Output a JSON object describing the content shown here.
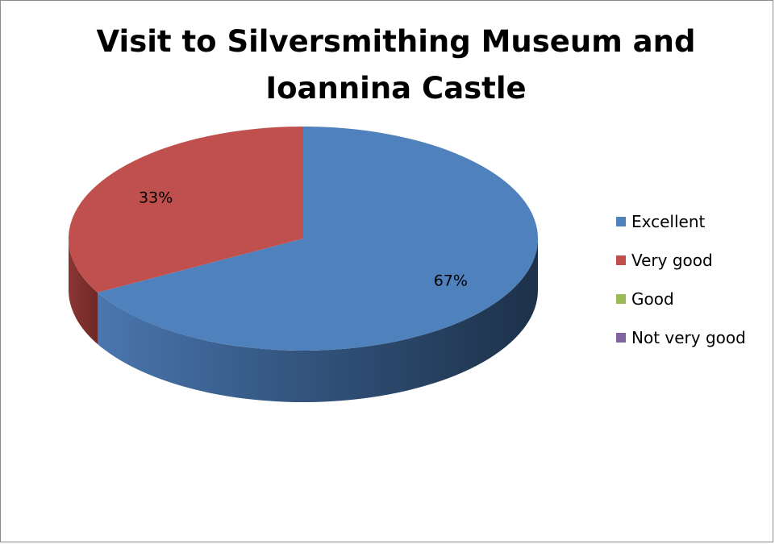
{
  "chart_data": {
    "type": "pie",
    "title": "Visit to Silversmithing Museum and Ioannina Castle",
    "title_lines": [
      "Visit to Silversmithing Museum and",
      "Ioannina Castle"
    ],
    "categories": [
      "Excellent",
      "Very good",
      "Good",
      "Not very good"
    ],
    "values": [
      67,
      33,
      0,
      0
    ],
    "data_labels": [
      "67%",
      "33%",
      "",
      ""
    ],
    "colors": [
      "#4F81BD",
      "#C0504D",
      "#9BBB59",
      "#8064A2"
    ],
    "legend_position": "right",
    "style": "3d"
  }
}
